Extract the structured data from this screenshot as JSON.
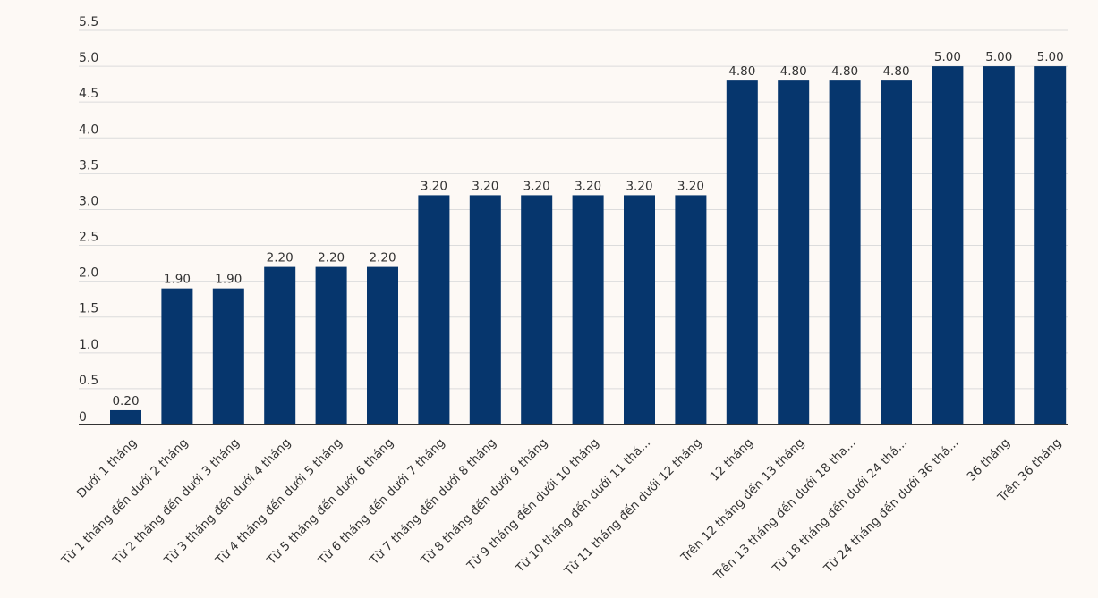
{
  "colors": {
    "background": "#fdf9f5",
    "bar": "#06366d",
    "gridline": "#dcdcdc",
    "axis": "#333333",
    "text": "#333333"
  },
  "chart_data": {
    "type": "bar",
    "title": "",
    "xlabel": "",
    "ylabel": "",
    "ylim": [
      0,
      5.5
    ],
    "yticks": [
      "0",
      "0.5",
      "1.0",
      "1.5",
      "2.0",
      "2.5",
      "3.0",
      "3.5",
      "4.0",
      "4.5",
      "5.0",
      "5.5"
    ],
    "grid": true,
    "legend": "none",
    "categories": [
      "Dưới 1 tháng",
      "Từ 1 tháng đến dưới 2 tháng",
      "Từ 2 tháng đến dưới 3 tháng",
      "Từ 3 tháng đến dưới 4 tháng",
      "Từ 4 tháng đến dưới 5 tháng",
      "Từ 5 tháng đến dưới 6 tháng",
      "Từ 6 tháng đến dưới 7 tháng",
      "Từ 7 tháng đến dưới 8 tháng",
      "Từ 8 tháng đến dưới 9 tháng",
      "Từ 9 tháng đến dưới 10 tháng",
      "Từ 10 tháng đến dưới 11 thá...",
      "Từ 11 tháng đến dưới 12 tháng",
      "12 tháng",
      "Trên 12 tháng đến 13 tháng",
      "Trên 13 tháng đến dưới 18 tha...",
      "Từ 18 tháng đến dưới 24 thá...",
      "Từ 24 tháng đến dưới 36 thá...",
      "36 tháng",
      "Trên 36 tháng"
    ],
    "values": [
      0.2,
      1.9,
      1.9,
      2.2,
      2.2,
      2.2,
      3.2,
      3.2,
      3.2,
      3.2,
      3.2,
      3.2,
      4.8,
      4.8,
      4.8,
      4.8,
      5.0,
      5.0,
      5.0
    ],
    "data_labels": [
      "0.20",
      "1.90",
      "1.90",
      "2.20",
      "2.20",
      "2.20",
      "3.20",
      "3.20",
      "3.20",
      "3.20",
      "3.20",
      "3.20",
      "4.80",
      "4.80",
      "4.80",
      "4.80",
      "5.00",
      "5.00",
      "5.00"
    ]
  }
}
